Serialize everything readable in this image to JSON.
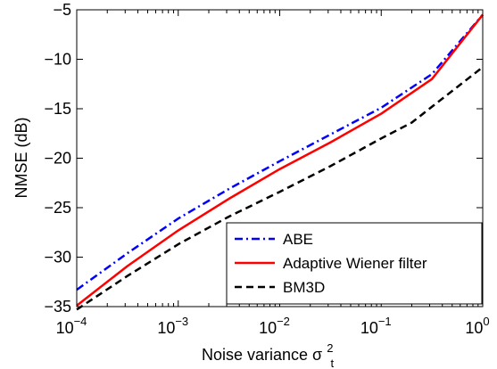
{
  "chart_data": {
    "type": "line",
    "x_scale": "log",
    "xlim": [
      0.0001,
      1
    ],
    "ylim": [
      -35,
      -5
    ],
    "xlabel": "Noise variance σ",
    "xlabel_sup": "2",
    "xlabel_sub": "t",
    "ylabel": "NMSE (dB)",
    "x_ticks": [
      {
        "base": "10",
        "exp": "−4",
        "value": 0.0001
      },
      {
        "base": "10",
        "exp": "−3",
        "value": 0.001
      },
      {
        "base": "10",
        "exp": "−2",
        "value": 0.01
      },
      {
        "base": "10",
        "exp": "−1",
        "value": 0.1
      },
      {
        "base": "10",
        "exp": "0",
        "value": 1
      }
    ],
    "y_ticks": [
      {
        "label": "−35",
        "value": -35
      },
      {
        "label": "−30",
        "value": -30
      },
      {
        "label": "−25",
        "value": -25
      },
      {
        "label": "−20",
        "value": -20
      },
      {
        "label": "−15",
        "value": -15
      },
      {
        "label": "−10",
        "value": -10
      },
      {
        "label": "−5",
        "value": -5
      }
    ],
    "legend_position": "bottom-right",
    "series": [
      {
        "name": "ABE",
        "color": "#0000ff",
        "style": "dashdot",
        "points": [
          [
            0.0001,
            -33.3
          ],
          [
            0.000316,
            -29.6
          ],
          [
            0.001,
            -26.1
          ],
          [
            0.00316,
            -23.1
          ],
          [
            0.01,
            -20.3
          ],
          [
            0.0316,
            -17.6
          ],
          [
            0.1,
            -14.9
          ],
          [
            0.316,
            -11.5
          ],
          [
            1,
            -5.5
          ]
        ]
      },
      {
        "name": "Adaptive Wiener filter",
        "color": "#ff0000",
        "style": "solid",
        "points": [
          [
            0.0001,
            -34.9
          ],
          [
            0.000316,
            -30.9
          ],
          [
            0.001,
            -27.3
          ],
          [
            0.00316,
            -24.1
          ],
          [
            0.01,
            -21.1
          ],
          [
            0.0316,
            -18.4
          ],
          [
            0.1,
            -15.5
          ],
          [
            0.316,
            -12.0
          ],
          [
            1,
            -5.5
          ]
        ]
      },
      {
        "name": "BM3D",
        "color": "#000000",
        "style": "dashed",
        "points": [
          [
            0.0001,
            -35.3
          ],
          [
            0.000316,
            -31.9
          ],
          [
            0.001,
            -28.7
          ],
          [
            0.00316,
            -25.9
          ],
          [
            0.01,
            -23.4
          ],
          [
            0.0316,
            -20.8
          ],
          [
            0.1,
            -18.0
          ],
          [
            0.2,
            -16.4
          ],
          [
            0.316,
            -14.8
          ],
          [
            0.562,
            -12.8
          ],
          [
            1,
            -10.8
          ]
        ]
      }
    ]
  }
}
